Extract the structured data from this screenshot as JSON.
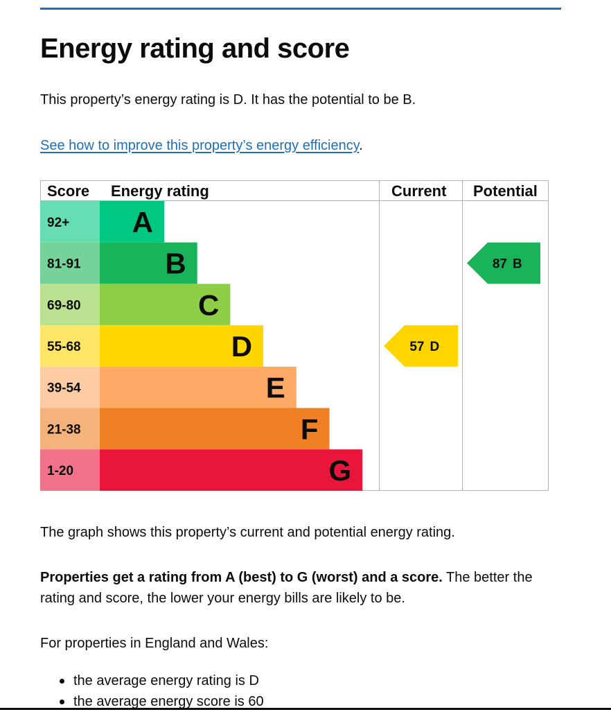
{
  "page": {
    "title": "Energy rating and score",
    "intro": "This property’s energy rating is D. It has the potential to be B.",
    "improve_link": "See how to improve this property’s energy efficiency",
    "improve_link_suffix": ".",
    "graph_caption": "The graph shows this property’s current and potential energy rating.",
    "rating_bold": "Properties get a rating from A (best) to G (worst) and a score.",
    "rating_rest": " The better the rating and score, the lower your energy bills are likely to be.",
    "region_intro": "For properties in England and Wales:",
    "bullets": [
      "the average energy rating is D",
      "the average energy score is 60"
    ]
  },
  "epc": {
    "headers": {
      "score": "Score",
      "rating": "Energy rating",
      "current": "Current",
      "potential": "Potential"
    },
    "bands": [
      {
        "letter": "A",
        "score": "92+",
        "color": "#00c781",
        "score_bg": "#66ddb3"
      },
      {
        "letter": "B",
        "score": "81-91",
        "color": "#19b459",
        "score_bg": "#75d29b"
      },
      {
        "letter": "C",
        "score": "69-80",
        "color": "#8dce46",
        "score_bg": "#bbe290"
      },
      {
        "letter": "D",
        "score": "55-68",
        "color": "#ffd500",
        "score_bg": "#ffe666"
      },
      {
        "letter": "E",
        "score": "39-54",
        "color": "#fcaa65",
        "score_bg": "#fdcca3"
      },
      {
        "letter": "F",
        "score": "21-38",
        "color": "#ef8023",
        "score_bg": "#f5b37b"
      },
      {
        "letter": "G",
        "score": "1-20",
        "color": "#e9153b",
        "score_bg": "#f27389"
      }
    ],
    "current": {
      "score": "57",
      "letter": "D",
      "color": "#ffd500"
    },
    "potential": {
      "score": "87",
      "letter": "B",
      "color": "#19b459"
    }
  }
}
